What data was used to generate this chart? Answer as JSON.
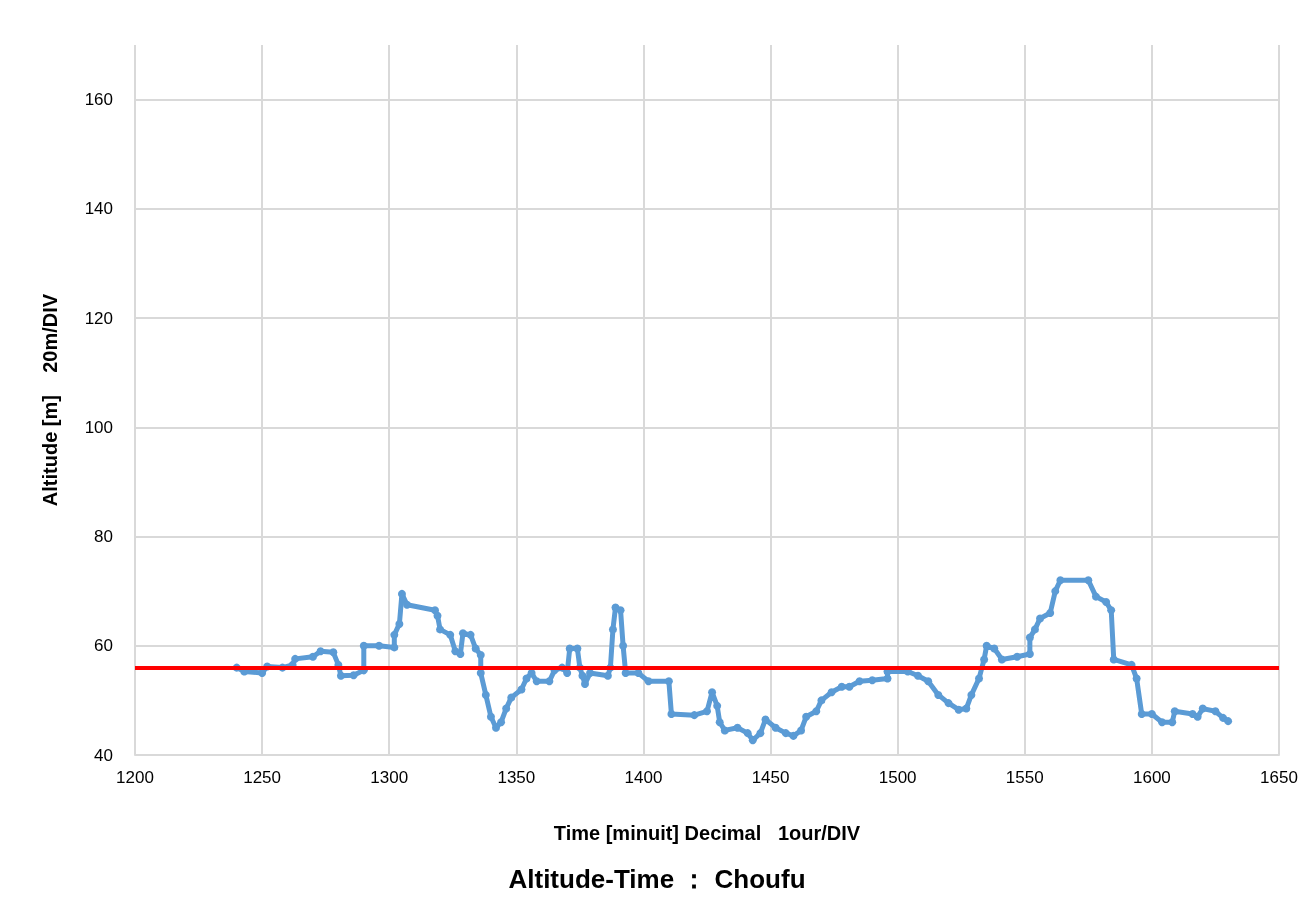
{
  "chart_data": {
    "type": "line",
    "title": "Altitude-Time ： Choufu",
    "xlabel": "Time [minuit] Decimal   1our/DIV",
    "ylabel": "Altitude [m]    20m/DIV",
    "xlim": [
      1200,
      1650
    ],
    "xticks": [
      1200,
      1250,
      1300,
      1350,
      1400,
      1450,
      1500,
      1550,
      1600,
      1650
    ],
    "ylim": [
      40,
      170
    ],
    "yticks": [
      40,
      60,
      80,
      100,
      120,
      140,
      160
    ],
    "grid": true,
    "marker": "circle",
    "line_style": "solid",
    "ref_lines": [
      {
        "axis": "y",
        "value": 56,
        "color": "#ff0000"
      }
    ],
    "series": [
      {
        "color": "#5b9bd5",
        "x": [
          1240,
          1243,
          1250,
          1252,
          1258,
          1262,
          1263,
          1270,
          1273,
          1278,
          1280,
          1281,
          1286,
          1290,
          1290,
          1296,
          1302,
          1302,
          1304,
          1305,
          1307,
          1318,
          1319,
          1320,
          1324,
          1326,
          1328,
          1329,
          1332,
          1334,
          1336,
          1336,
          1338,
          1340,
          1342,
          1344,
          1346,
          1348,
          1352,
          1354,
          1356,
          1358,
          1363,
          1365,
          1368,
          1370,
          1371,
          1374,
          1375,
          1376,
          1377,
          1379,
          1386,
          1387,
          1388,
          1389,
          1391,
          1392,
          1393,
          1398,
          1402,
          1410,
          1411,
          1420,
          1425,
          1427,
          1429,
          1430,
          1432,
          1437,
          1441,
          1443,
          1446,
          1448,
          1452,
          1456,
          1459,
          1462,
          1464,
          1468,
          1470,
          1474,
          1478,
          1481,
          1485,
          1490,
          1496,
          1496,
          1504,
          1508,
          1512,
          1516,
          1520,
          1524,
          1527,
          1529,
          1532,
          1534,
          1535,
          1538,
          1541,
          1547,
          1552,
          1552,
          1554,
          1556,
          1560,
          1562,
          1564,
          1575,
          1578,
          1582,
          1584,
          1585,
          1592,
          1594,
          1596,
          1600,
          1604,
          1608,
          1609,
          1616,
          1618,
          1620,
          1625,
          1628,
          1630
        ],
        "values": [
          56,
          55.3,
          55,
          56.2,
          56,
          56.5,
          57.6,
          58,
          59,
          58.8,
          56.5,
          54.5,
          54.6,
          55.5,
          60,
          60,
          59.7,
          62,
          64,
          69.5,
          67.5,
          66.5,
          65.5,
          63,
          62,
          59,
          58.5,
          62.3,
          62,
          59.5,
          58.3,
          55,
          51,
          47,
          45,
          46,
          48.5,
          50.5,
          52,
          54,
          55,
          53.5,
          53.5,
          55.5,
          56,
          55,
          59.5,
          59.5,
          56,
          54.5,
          53,
          55,
          54.5,
          56,
          63,
          67,
          66.5,
          60,
          55,
          55,
          53.5,
          53.5,
          47.5,
          47.3,
          48,
          51.5,
          49,
          46,
          44.5,
          45,
          44,
          42.7,
          44,
          46.5,
          45,
          44,
          43.5,
          44.5,
          47,
          48,
          50,
          51.5,
          52.5,
          52.5,
          53.5,
          53.7,
          54,
          55.3,
          55.3,
          54.5,
          53.5,
          51,
          49.5,
          48.3,
          48.5,
          51,
          54,
          57.5,
          60,
          59.5,
          57.5,
          58,
          58.5,
          61.5,
          63,
          65,
          66,
          70,
          72,
          72,
          69,
          68,
          66.5,
          57.5,
          56.5,
          54,
          47.5,
          47.5,
          46,
          46,
          48,
          47.5,
          47,
          48.5,
          48,
          46.8,
          46.2
        ]
      }
    ]
  }
}
